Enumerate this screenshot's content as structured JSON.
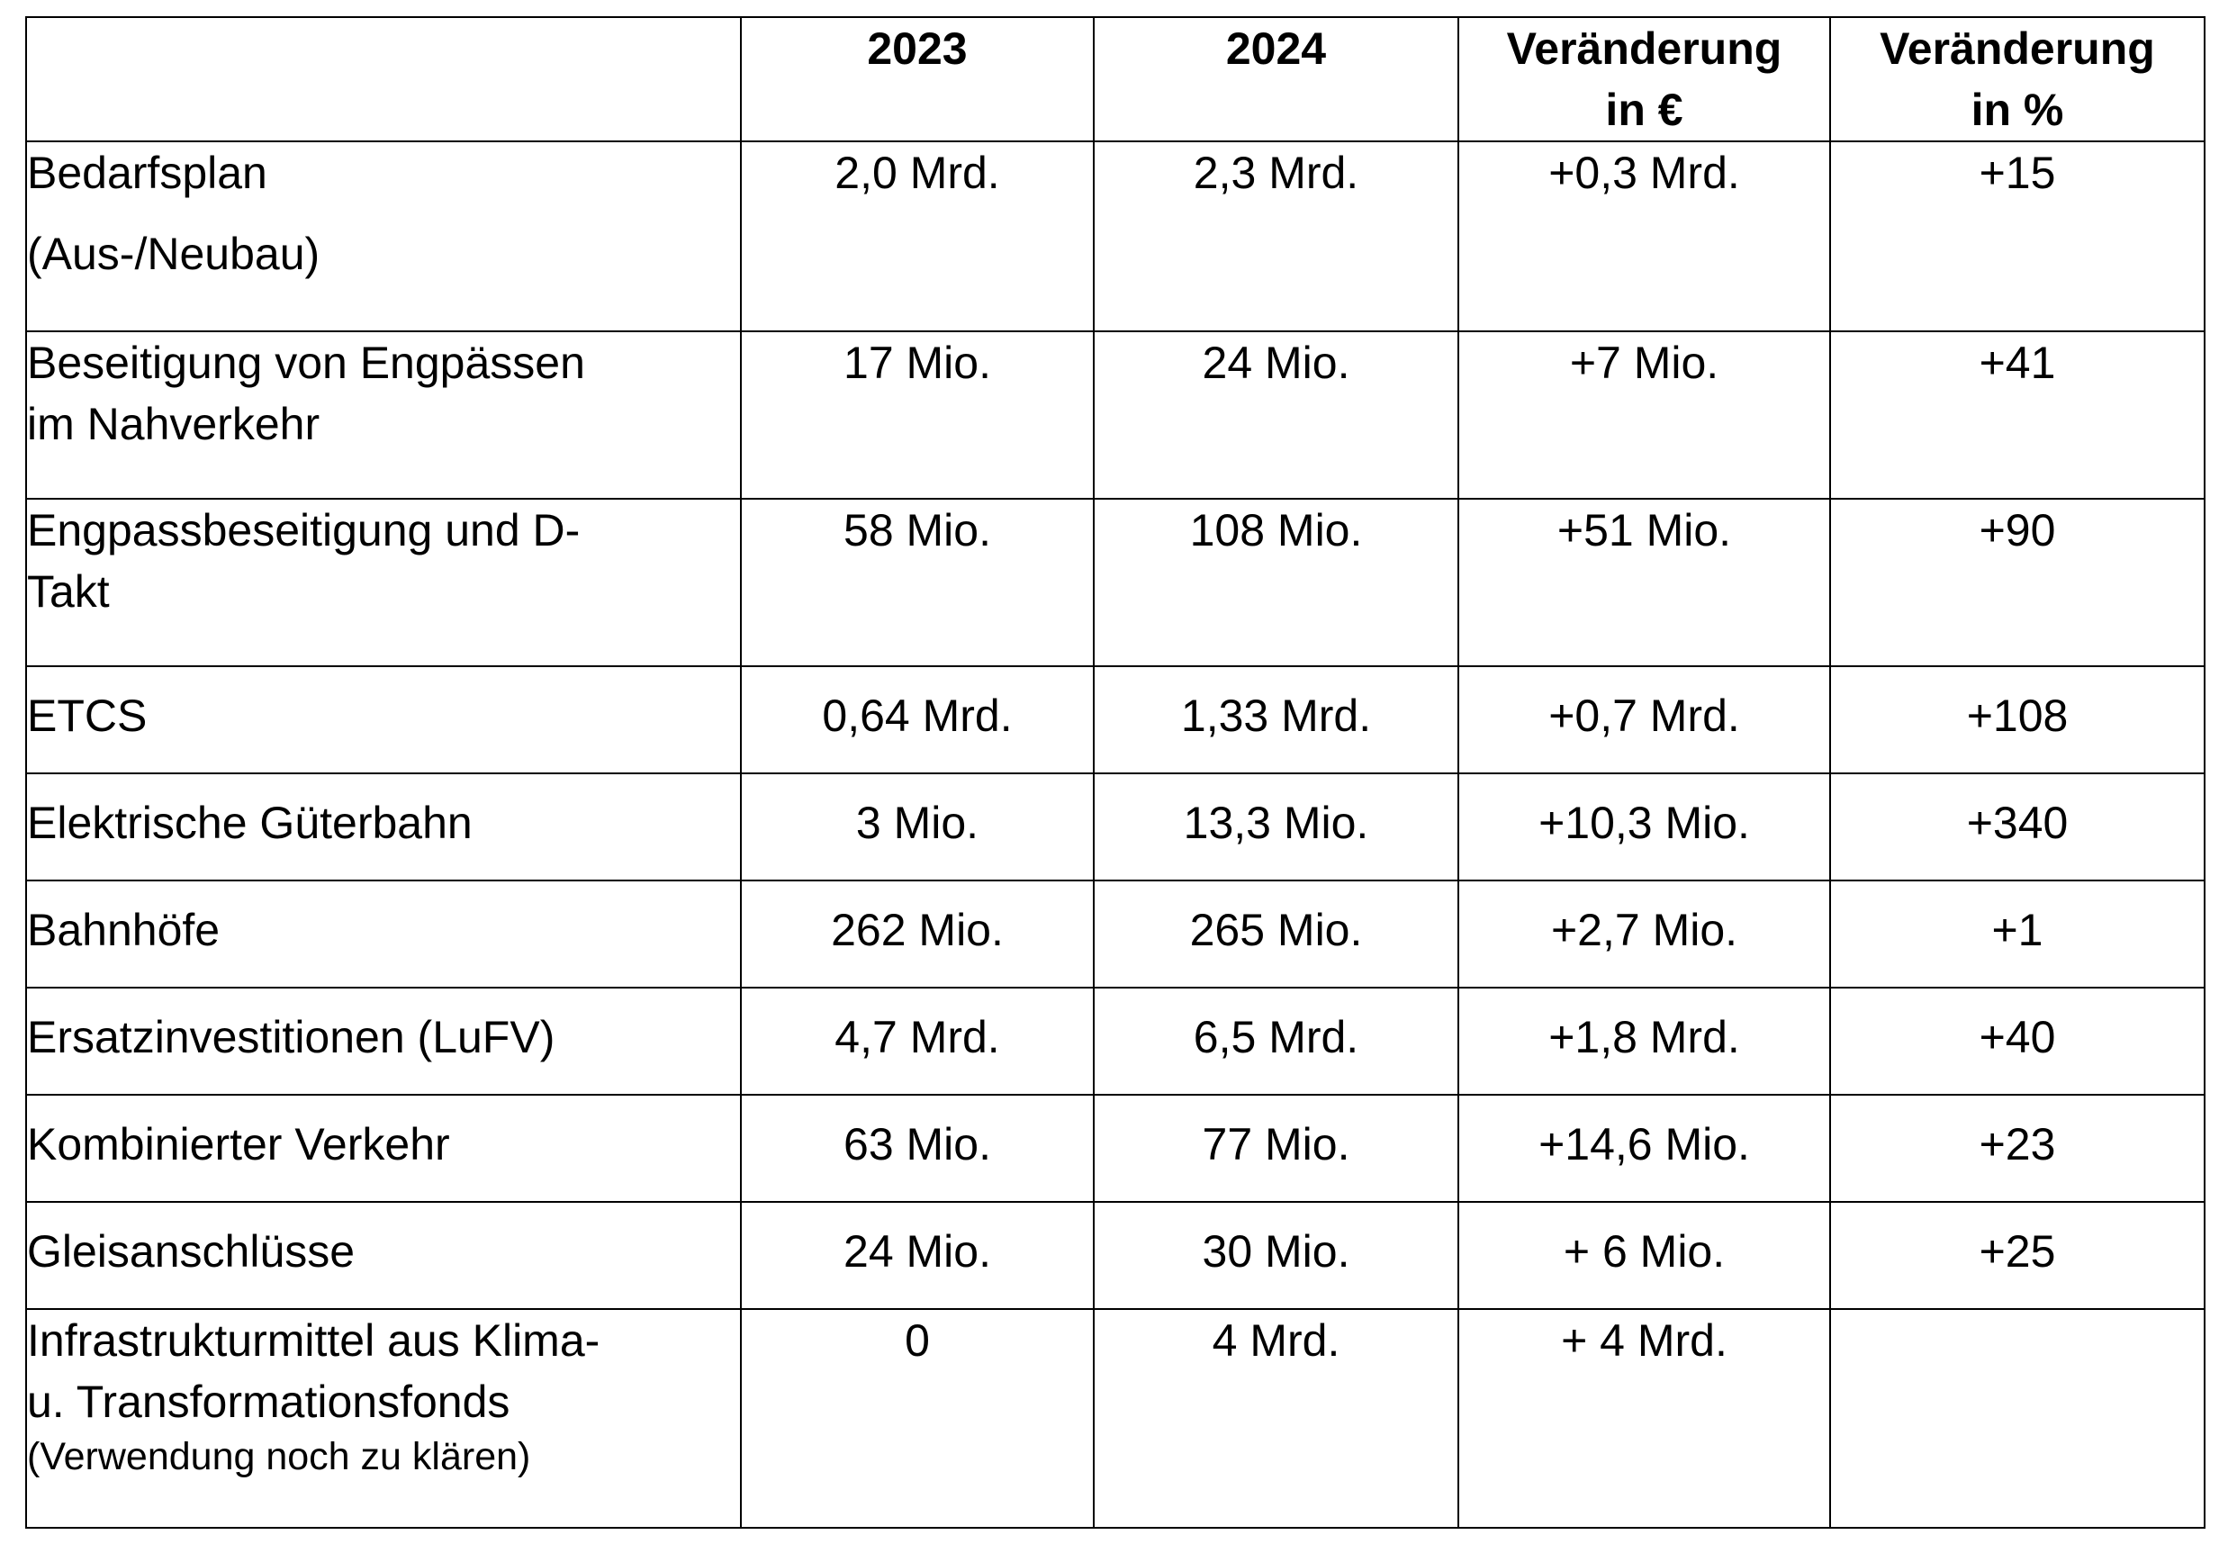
{
  "header": {
    "blank": "",
    "col_2023": "2023",
    "col_2024": "2024",
    "col_change_eur_line1": "Veränderung",
    "col_change_eur_line2": "in €",
    "col_change_pct_line1": "Veränderung",
    "col_change_pct_line2": "in %"
  },
  "rows": [
    {
      "label_line1": "Bedarfsplan",
      "label_line2": "(Aus-/Neubau)",
      "v2023": "2,0 Mrd.",
      "v2024": "2,3 Mrd.",
      "change_eur": "+0,3 Mrd.",
      "change_pct": "+15"
    },
    {
      "label_line1": "Beseitigung von Engpässen",
      "label_line2": "im Nahverkehr",
      "v2023": "17 Mio.",
      "v2024": "24 Mio.",
      "change_eur": "+7 Mio.",
      "change_pct": "+41"
    },
    {
      "label_line1": "Engpassbeseitigung und D-",
      "label_line2": "Takt",
      "v2023": "58 Mio.",
      "v2024": "108 Mio.",
      "change_eur": "+51 Mio.",
      "change_pct": "+90"
    },
    {
      "label_line1": "ETCS",
      "v2023": "0,64 Mrd.",
      "v2024": "1,33 Mrd.",
      "change_eur": "+0,7 Mrd.",
      "change_pct": "+108"
    },
    {
      "label_line1": "Elektrische Güterbahn",
      "v2023": "3 Mio.",
      "v2024": "13,3 Mio.",
      "change_eur": "+10,3 Mio.",
      "change_pct": "+340"
    },
    {
      "label_line1": "Bahnhöfe",
      "v2023": "262 Mio.",
      "v2024": "265 Mio.",
      "change_eur": "+2,7 Mio.",
      "change_pct": "+1"
    },
    {
      "label_line1": "Ersatzinvestitionen (LuFV)",
      "v2023": "4,7 Mrd.",
      "v2024": "6,5 Mrd.",
      "change_eur": "+1,8 Mrd.",
      "change_pct": "+40"
    },
    {
      "label_line1": "Kombinierter Verkehr",
      "v2023": "63 Mio.",
      "v2024": "77 Mio.",
      "change_eur": "+14,6 Mio.",
      "change_pct": "+23"
    },
    {
      "label_line1": "Gleisanschlüsse",
      "v2023": "24 Mio.",
      "v2024": "30 Mio.",
      "change_eur": "+ 6 Mio.",
      "change_pct": "+25"
    },
    {
      "label_line1": "Infrastrukturmittel aus Klima-",
      "label_line2": "u. Transformationsfonds",
      "label_note": "(Verwendung noch zu klären)",
      "v2023": "0",
      "v2024": "4 Mrd.",
      "change_eur": "+ 4 Mrd.",
      "change_pct": ""
    }
  ]
}
